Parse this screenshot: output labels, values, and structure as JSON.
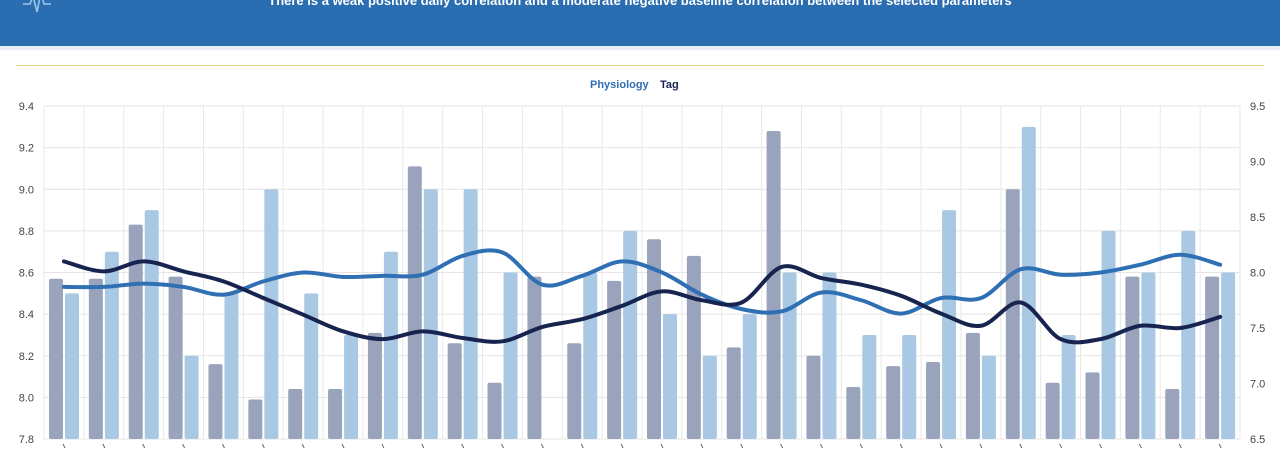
{
  "header": {
    "message": "There is a weak positive daily correlation and a moderate negative baseline correlation between the selected parameters",
    "logo_icon": "heartbeat-logo-icon"
  },
  "colors": {
    "banner": "#2a6db0",
    "physiology_bar": "#a9c8e3",
    "tag_bar": "#9aa3bc",
    "physiology_line": "#2f6fb3",
    "tag_line": "#17244f"
  },
  "chart_data": {
    "type": "bar",
    "legend": {
      "placement": "top-center",
      "entries": [
        {
          "label": "Physiology",
          "color": "#2f6fb3"
        },
        {
          "label": "Tag",
          "color": "#17244f"
        }
      ]
    },
    "grid": true,
    "y_left": {
      "min": 7.8,
      "max": 9.4,
      "ticks": [
        "7.8",
        "8.0",
        "8.2",
        "8.4",
        "8.6",
        "8.8",
        "9.0",
        "9.2",
        "9.4"
      ]
    },
    "y_right": {
      "min": 6.5,
      "max": 9.5,
      "ticks": [
        "6.5",
        "7.0",
        "7.5",
        "8.0",
        "8.5",
        "9.0",
        "9.5"
      ]
    },
    "categories": 30,
    "series": [
      {
        "name": "Tag",
        "kind": "bar",
        "axis": "left",
        "values": [
          8.57,
          8.57,
          8.83,
          8.58,
          8.16,
          7.99,
          8.04,
          8.04,
          8.31,
          9.11,
          8.26,
          8.07,
          8.58,
          8.26,
          8.56,
          8.76,
          8.68,
          8.24,
          9.28,
          8.2,
          8.05,
          8.15,
          8.17,
          8.31,
          9.0,
          8.07,
          8.12,
          8.58,
          8.04,
          8.58
        ]
      },
      {
        "name": "Physiology",
        "kind": "bar",
        "axis": "left",
        "values": [
          8.5,
          8.7,
          8.9,
          8.2,
          8.5,
          9.0,
          8.5,
          8.3,
          8.7,
          9.0,
          9.0,
          8.6,
          null,
          8.6,
          8.8,
          8.4,
          8.2,
          8.4,
          8.6,
          8.6,
          8.3,
          8.3,
          8.9,
          8.2,
          9.3,
          8.3,
          8.8,
          8.6,
          8.8,
          8.6
        ]
      },
      {
        "name": "Physiology",
        "kind": "line",
        "axis": "right",
        "values": [
          7.87,
          7.87,
          7.9,
          7.87,
          7.8,
          7.92,
          8.0,
          7.96,
          7.97,
          7.98,
          8.15,
          8.18,
          7.89,
          7.97,
          8.1,
          8.0,
          7.8,
          7.67,
          7.65,
          7.82,
          7.75,
          7.63,
          7.77,
          7.77,
          8.03,
          7.98,
          8.0,
          8.07,
          8.16,
          8.07
        ]
      },
      {
        "name": "Tag",
        "kind": "line",
        "axis": "right",
        "values": [
          8.1,
          8.01,
          8.1,
          8.01,
          7.92,
          7.77,
          7.62,
          7.47,
          7.4,
          7.47,
          7.41,
          7.38,
          7.51,
          7.58,
          7.7,
          7.83,
          7.75,
          7.73,
          8.05,
          7.95,
          7.89,
          7.79,
          7.63,
          7.52,
          7.73,
          7.4,
          7.4,
          7.52,
          7.5,
          7.6
        ]
      }
    ]
  }
}
